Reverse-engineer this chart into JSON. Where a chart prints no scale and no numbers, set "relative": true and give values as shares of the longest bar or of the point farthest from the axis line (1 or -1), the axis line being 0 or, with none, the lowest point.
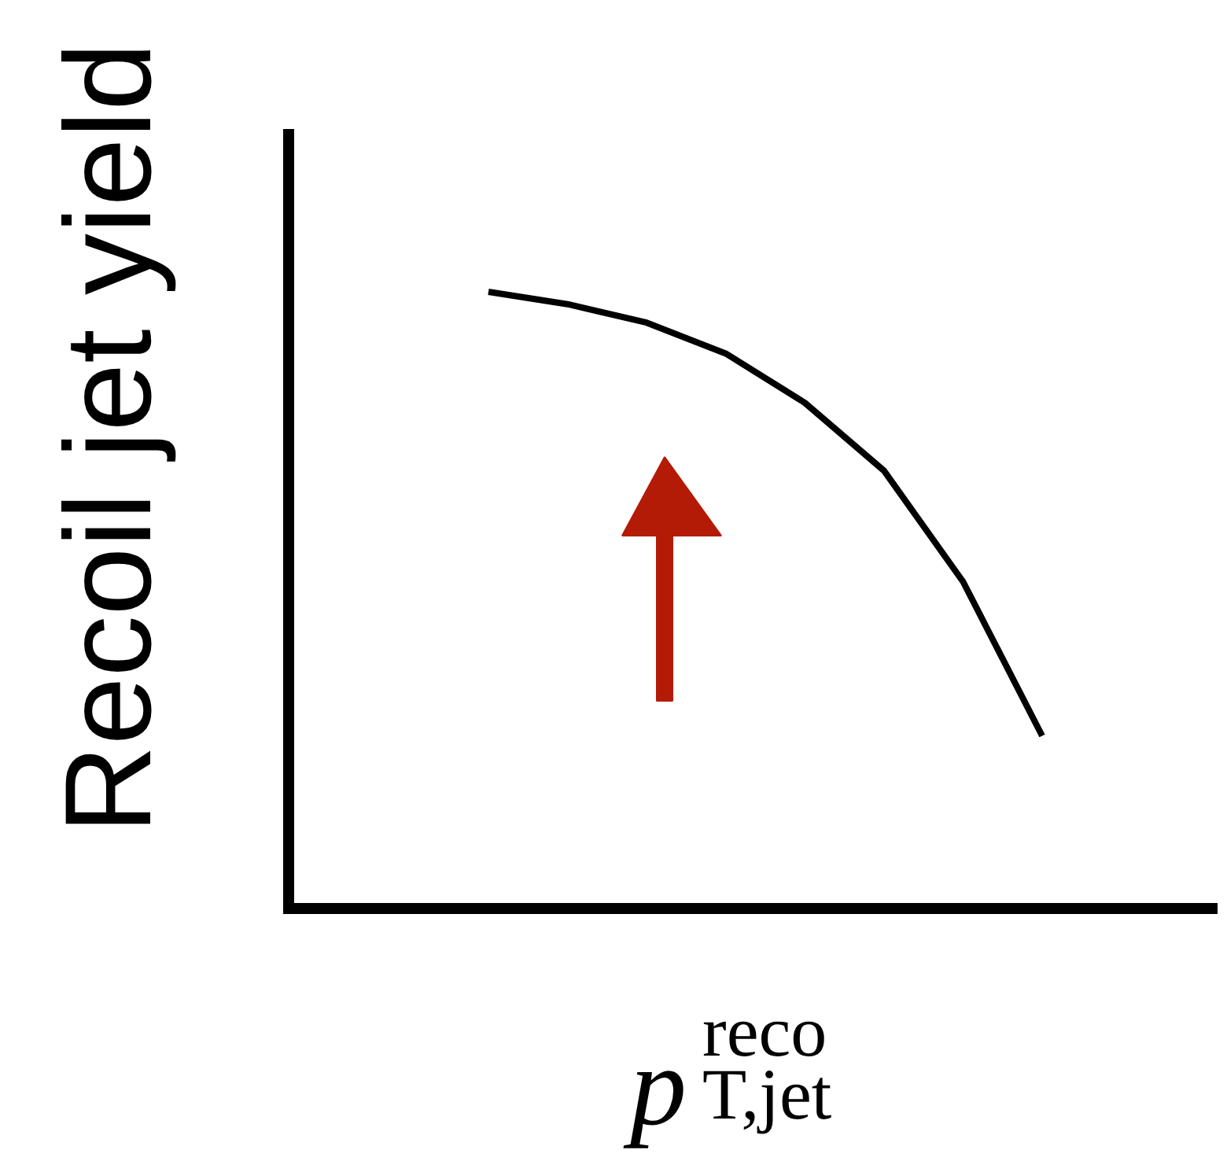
{
  "chart_data": {
    "type": "line",
    "relative": true,
    "xlabel": "p$^{reco}$$_{T,jet}$",
    "ylabel": "Recoil jet yield",
    "categories": [
      null,
      null,
      null,
      null,
      null,
      null,
      null,
      null
    ],
    "series": [
      {
        "color": "#000000",
        "values": [
          1,
          0.98,
          0.95,
          0.9,
          0.82,
          0.71,
          0.53,
          0.28
        ]
      }
    ],
    "marker": "none",
    "line_style": "solid"
  }
}
